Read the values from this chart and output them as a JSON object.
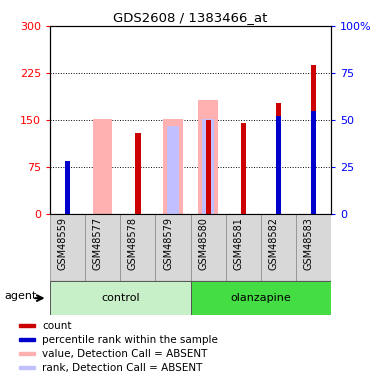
{
  "title": "GDS2608 / 1383466_at",
  "samples": [
    "GSM48559",
    "GSM48577",
    "GSM48578",
    "GSM48579",
    "GSM48580",
    "GSM48581",
    "GSM48582",
    "GSM48583"
  ],
  "count_values": [
    78,
    0,
    130,
    0,
    150,
    145,
    178,
    238
  ],
  "percentile_values": [
    28,
    0,
    0,
    0,
    0,
    0,
    52,
    55
  ],
  "absent_value_values": [
    0,
    152,
    0,
    152,
    182,
    0,
    0,
    0
  ],
  "absent_rank_values": [
    0,
    0,
    0,
    140,
    152,
    0,
    0,
    0
  ],
  "ylim_left": [
    0,
    300
  ],
  "ylim_right": [
    0,
    100
  ],
  "yticks_left": [
    0,
    75,
    150,
    225,
    300
  ],
  "yticks_right": [
    0,
    25,
    50,
    75,
    100
  ],
  "ytick_labels_left": [
    "0",
    "75",
    "150",
    "225",
    "300"
  ],
  "ytick_labels_right": [
    "0",
    "25",
    "50",
    "75",
    "100%"
  ],
  "color_count": "#cc0000",
  "color_percentile": "#0000cc",
  "color_absent_value": "#ffb0b0",
  "color_absent_rank": "#c0c0ff",
  "legend_items": [
    {
      "label": "count",
      "color": "#cc0000"
    },
    {
      "label": "percentile rank within the sample",
      "color": "#0000cc"
    },
    {
      "label": "value, Detection Call = ABSENT",
      "color": "#ffb0b0"
    },
    {
      "label": "rank, Detection Call = ABSENT",
      "color": "#c0c0ff"
    }
  ],
  "control_color_light": "#c8f0c8",
  "olanzapine_color": "#44dd44",
  "agent_label": "agent"
}
